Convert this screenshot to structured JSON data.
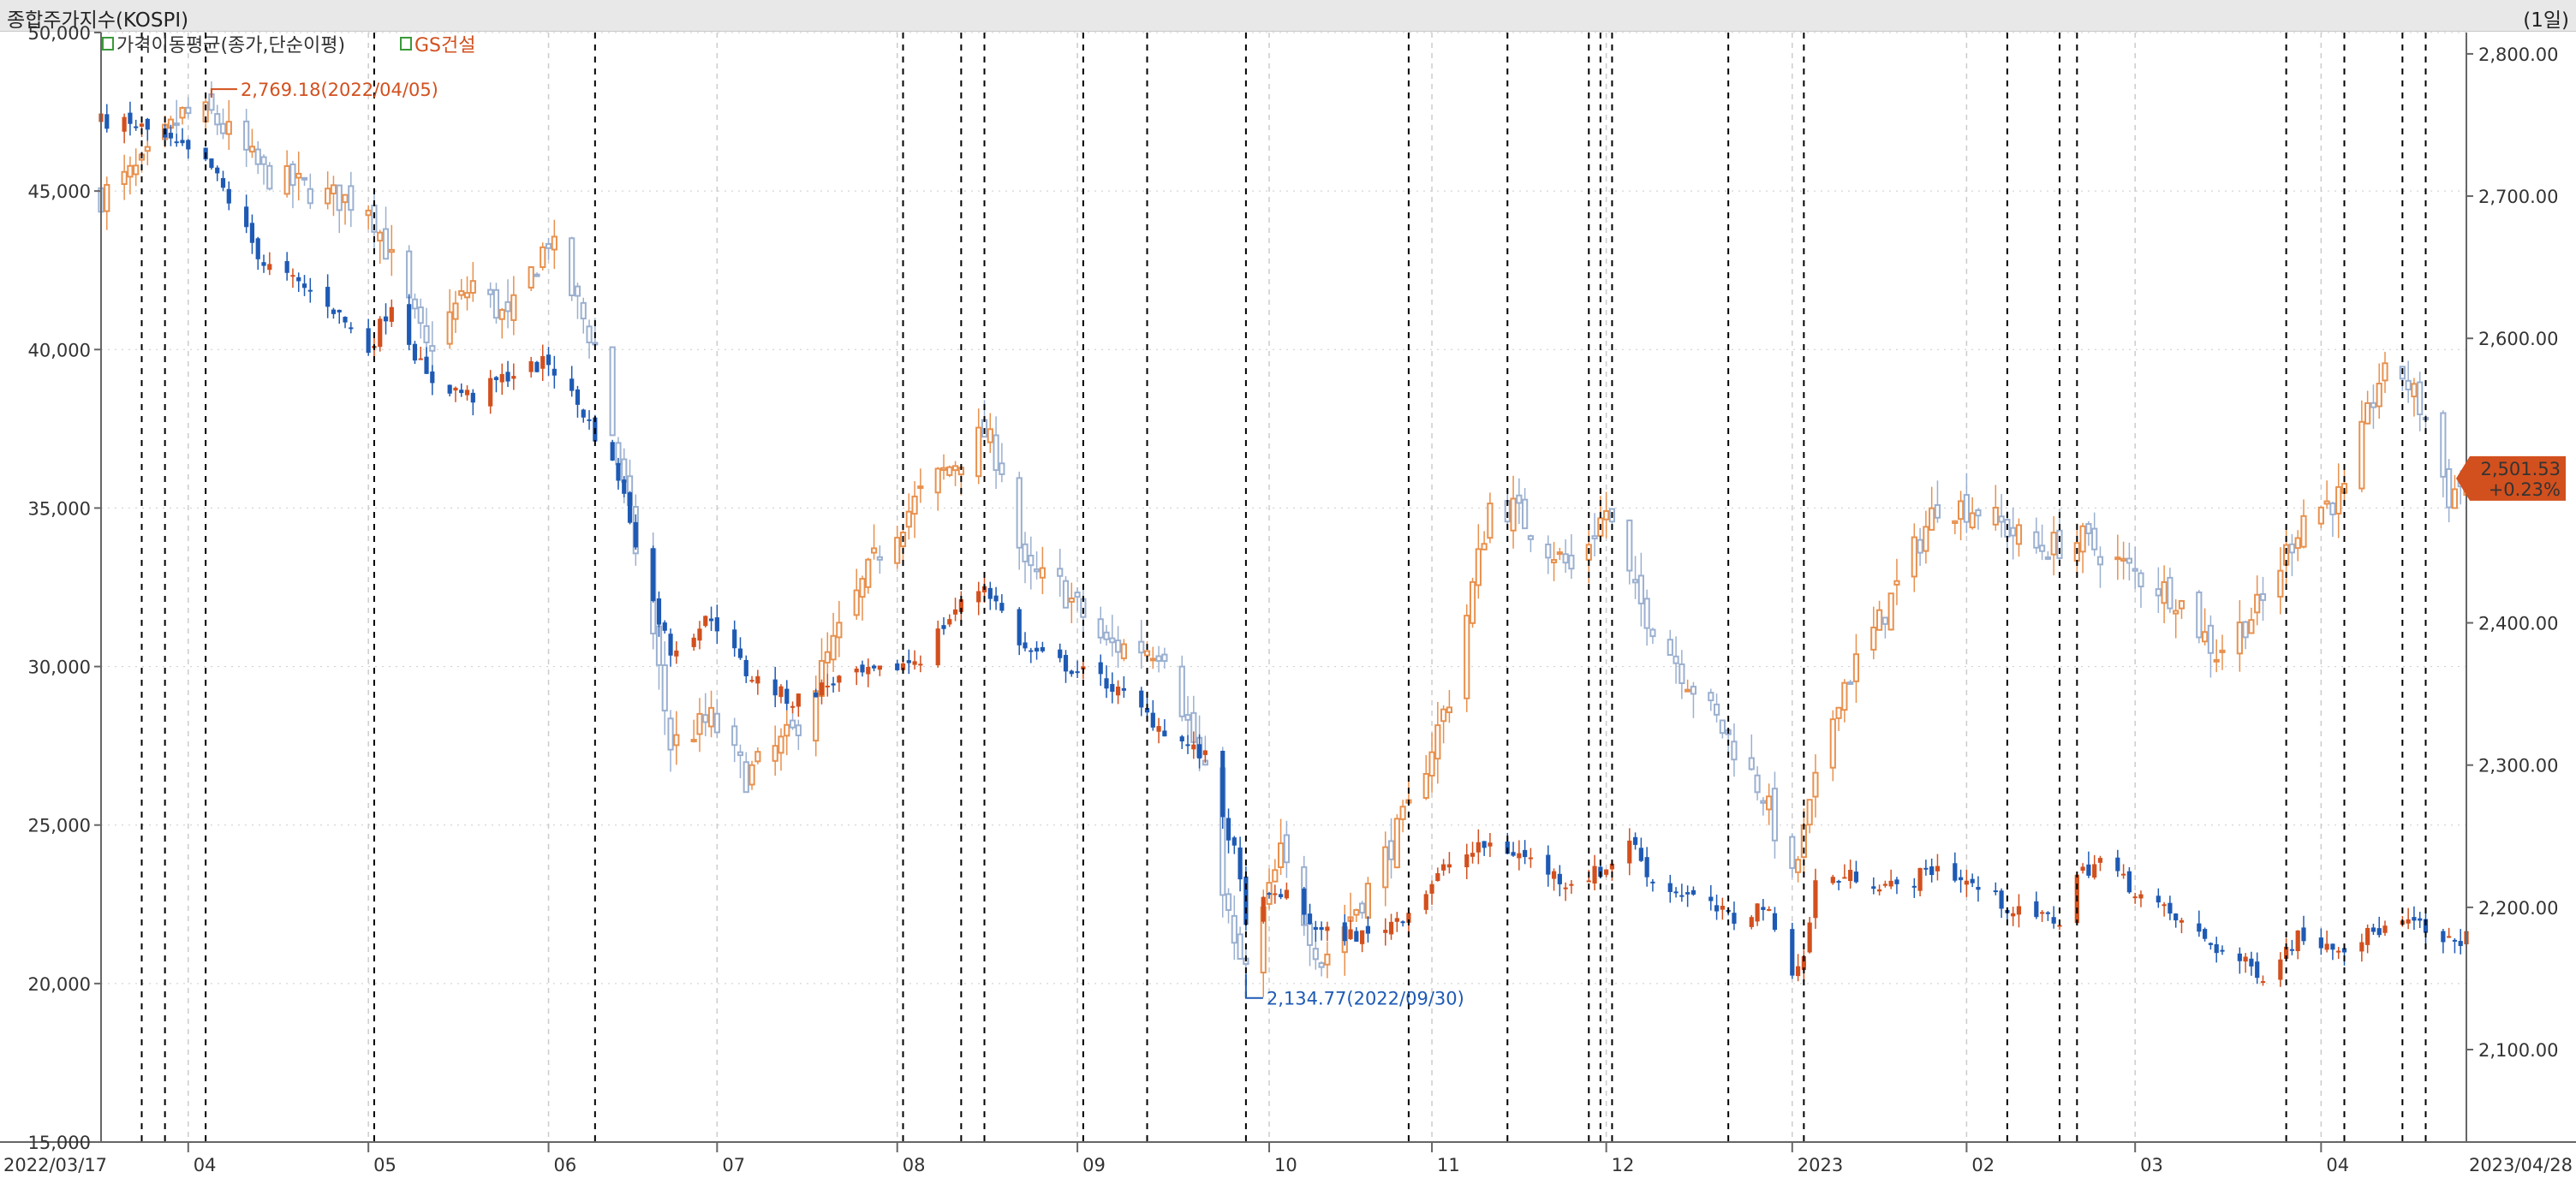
{
  "header": {
    "title": "종합주가지수(KOSPI)",
    "period": "(1일)"
  },
  "legend": [
    {
      "label": "가격이동평균(종가,단순이평)",
      "color": "#333333",
      "icon": "checkbox-icon"
    },
    {
      "label": "GS건설",
      "color": "#d2501e",
      "icon": "checkbox-icon"
    }
  ],
  "colors": {
    "gs_up": "#d2501e",
    "gs_down": "#1e5ab4",
    "kospi_up": "#e8914e",
    "kospi_down": "#9bb0d0",
    "event_line": "#000000",
    "grid": "#cccccc",
    "badge_bg": "#d2501e"
  },
  "last_badge": {
    "value": "2,501.53",
    "change": "+0.23%"
  },
  "chart_data": {
    "type": "candlestick",
    "title": "종합주가지수(KOSPI)",
    "x_range": [
      "2022/03/17",
      "2023/04/28"
    ],
    "x_start_label": "2022/03/17",
    "x_end_label": "2023/04/28",
    "x_ticks": [
      {
        "label": "04",
        "date": "2022/04/01"
      },
      {
        "label": "05",
        "date": "2022/05/02"
      },
      {
        "label": "06",
        "date": "2022/06/02"
      },
      {
        "label": "07",
        "date": "2022/07/01"
      },
      {
        "label": "08",
        "date": "2022/08/01"
      },
      {
        "label": "09",
        "date": "2022/09/01"
      },
      {
        "label": "10",
        "date": "2022/10/04"
      },
      {
        "label": "11",
        "date": "2022/11/01"
      },
      {
        "label": "12",
        "date": "2022/12/01"
      },
      {
        "label": "2023",
        "date": "2023/01/02"
      },
      {
        "label": "02",
        "date": "2023/02/01"
      },
      {
        "label": "03",
        "date": "2023/03/02"
      },
      {
        "label": "04",
        "date": "2023/04/03"
      }
    ],
    "event_dates": [
      "2022/03/24",
      "2022/03/28",
      "2022/04/04",
      "2022/05/03",
      "2022/06/10",
      "2022/08/02",
      "2022/08/12",
      "2022/08/16",
      "2022/09/02",
      "2022/09/13",
      "2022/09/30",
      "2022/10/28",
      "2022/11/14",
      "2022/11/28",
      "2022/11/30",
      "2022/12/02",
      "2022/12/22",
      "2023/01/04",
      "2023/02/08",
      "2023/02/17",
      "2023/02/20",
      "2023/03/28",
      "2023/04/07",
      "2023/04/17",
      "2023/04/21"
    ],
    "left_axis": {
      "name": "GS건설",
      "range": [
        15000,
        50000
      ],
      "ticks": [
        "50,000",
        "45,000",
        "40,000",
        "35,000",
        "30,000",
        "25,000",
        "20,000",
        "15,000"
      ]
    },
    "right_axis": {
      "name": "종합주가지수(KOSPI)",
      "range": [
        2035,
        2815
      ],
      "ticks": [
        "2,800.00",
        "2,700.00",
        "2,600.00",
        "2,500.00",
        "2,400.00",
        "2,300.00",
        "2,200.00",
        "2,100.00"
      ]
    },
    "annotations": [
      {
        "series": "KOSPI",
        "text": "2,769.18(2022/04/05)",
        "date": "2022/04/05",
        "value": 2769.18
      },
      {
        "series": "GS건설",
        "text": "2,134.77(2022/09/30)",
        "date": "2022/09/30",
        "value": 20300
      }
    ],
    "series": [
      {
        "name": "KOSPI",
        "axis": "right",
        "anchors": [
          [
            "2022/03/17",
            2700
          ],
          [
            "2022/03/24",
            2720
          ],
          [
            "2022/03/31",
            2757
          ],
          [
            "2022/04/05",
            2757
          ],
          [
            "2022/04/14",
            2716
          ],
          [
            "2022/04/25",
            2700
          ],
          [
            "2022/05/02",
            2695
          ],
          [
            "2022/05/12",
            2592
          ],
          [
            "2022/05/20",
            2639
          ],
          [
            "2022/05/26",
            2612
          ],
          [
            "2022/06/02",
            2670
          ],
          [
            "2022/06/10",
            2595
          ],
          [
            "2022/06/20",
            2391
          ],
          [
            "2022/06/23",
            2314
          ],
          [
            "2022/06/30",
            2332
          ],
          [
            "2022/07/06",
            2292
          ],
          [
            "2022/07/14",
            2322
          ],
          [
            "2022/07/22",
            2393
          ],
          [
            "2022/07/29",
            2451
          ],
          [
            "2022/08/05",
            2490
          ],
          [
            "2022/08/16",
            2533
          ],
          [
            "2022/08/19",
            2510
          ],
          [
            "2022/08/23",
            2435
          ],
          [
            "2022/08/29",
            2426
          ],
          [
            "2022/09/06",
            2384
          ],
          [
            "2022/09/16",
            2382
          ],
          [
            "2022/09/23",
            2290
          ],
          [
            "2022/09/28",
            2169
          ],
          [
            "2022/09/30",
            2155
          ],
          [
            "2022/10/06",
            2237
          ],
          [
            "2022/10/13",
            2162
          ],
          [
            "2022/10/21",
            2213
          ],
          [
            "2022/10/28",
            2268
          ],
          [
            "2022/11/04",
            2348
          ],
          [
            "2022/11/11",
            2483
          ],
          [
            "2022/11/15",
            2480
          ],
          [
            "2022/11/25",
            2437
          ],
          [
            "2022/12/01",
            2479
          ],
          [
            "2022/12/06",
            2419
          ],
          [
            "2022/12/15",
            2361
          ],
          [
            "2022/12/23",
            2313
          ],
          [
            "2022/12/28",
            2280
          ],
          [
            "2023/01/02",
            2218
          ],
          [
            "2023/01/10",
            2351
          ],
          [
            "2023/01/17",
            2400
          ],
          [
            "2023/01/27",
            2484
          ],
          [
            "2023/02/03",
            2480
          ],
          [
            "2023/02/13",
            2452
          ],
          [
            "2023/02/21",
            2458
          ],
          [
            "2023/03/03",
            2432
          ],
          [
            "2023/03/09",
            2419
          ],
          [
            "2023/03/16",
            2379
          ],
          [
            "2023/03/24",
            2414
          ],
          [
            "2023/03/31",
            2476
          ],
          [
            "2023/04/07",
            2490
          ],
          [
            "2023/04/13",
            2571
          ],
          [
            "2023/04/17",
            2575
          ],
          [
            "2023/04/21",
            2544
          ],
          [
            "2023/04/25",
            2489
          ],
          [
            "2023/04/28",
            2501.53
          ]
        ]
      },
      {
        "name": "GS건설",
        "axis": "left",
        "anchors": [
          [
            "2022/03/17",
            47200
          ],
          [
            "2022/03/24",
            47000
          ],
          [
            "2022/03/31",
            46300
          ],
          [
            "2022/04/05",
            45700
          ],
          [
            "2022/04/14",
            42700
          ],
          [
            "2022/04/25",
            41500
          ],
          [
            "2022/05/02",
            40000
          ],
          [
            "2022/05/06",
            41500
          ],
          [
            "2022/05/12",
            39100
          ],
          [
            "2022/05/20",
            38500
          ],
          [
            "2022/05/26",
            39200
          ],
          [
            "2022/06/02",
            39600
          ],
          [
            "2022/06/08",
            38000
          ],
          [
            "2022/06/14",
            36000
          ],
          [
            "2022/06/20",
            32000
          ],
          [
            "2022/06/23",
            30500
          ],
          [
            "2022/06/30",
            31600
          ],
          [
            "2022/07/06",
            29800
          ],
          [
            "2022/07/14",
            28900
          ],
          [
            "2022/07/22",
            29600
          ],
          [
            "2022/07/29",
            29800
          ],
          [
            "2022/08/05",
            30300
          ],
          [
            "2022/08/11",
            31800
          ],
          [
            "2022/08/16",
            32600
          ],
          [
            "2022/08/23",
            30500
          ],
          [
            "2022/08/29",
            30100
          ],
          [
            "2022/09/06",
            29500
          ],
          [
            "2022/09/16",
            28000
          ],
          [
            "2022/09/23",
            27100
          ],
          [
            "2022/09/28",
            24100
          ],
          [
            "2022/09/30",
            22100
          ],
          [
            "2022/10/06",
            22900
          ],
          [
            "2022/10/13",
            21600
          ],
          [
            "2022/10/21",
            21500
          ],
          [
            "2022/10/28",
            22300
          ],
          [
            "2022/11/04",
            23800
          ],
          [
            "2022/11/11",
            24400
          ],
          [
            "2022/11/17",
            24000
          ],
          [
            "2022/11/24",
            23200
          ],
          [
            "2022/12/01",
            23600
          ],
          [
            "2022/12/05",
            24600
          ],
          [
            "2022/12/09",
            23200
          ],
          [
            "2022/12/16",
            22700
          ],
          [
            "2022/12/23",
            22000
          ],
          [
            "2022/12/28",
            22500
          ],
          [
            "2023/01/02",
            20500
          ],
          [
            "2023/01/04",
            20800
          ],
          [
            "2023/01/06",
            23200
          ],
          [
            "2023/01/13",
            23400
          ],
          [
            "2023/01/20",
            23000
          ],
          [
            "2023/01/27",
            23700
          ],
          [
            "2023/02/03",
            23000
          ],
          [
            "2023/02/10",
            22200
          ],
          [
            "2023/02/17",
            22000
          ],
          [
            "2023/02/20",
            23400
          ],
          [
            "2023/02/24",
            23900
          ],
          [
            "2023/03/03",
            22800
          ],
          [
            "2023/03/10",
            21900
          ],
          [
            "2023/03/17",
            21000
          ],
          [
            "2023/03/24",
            20300
          ],
          [
            "2023/03/30",
            21500
          ],
          [
            "2023/04/07",
            21200
          ],
          [
            "2023/04/13",
            21700
          ],
          [
            "2023/04/19",
            21900
          ],
          [
            "2023/04/24",
            21200
          ],
          [
            "2023/04/28",
            21500
          ]
        ]
      }
    ]
  }
}
